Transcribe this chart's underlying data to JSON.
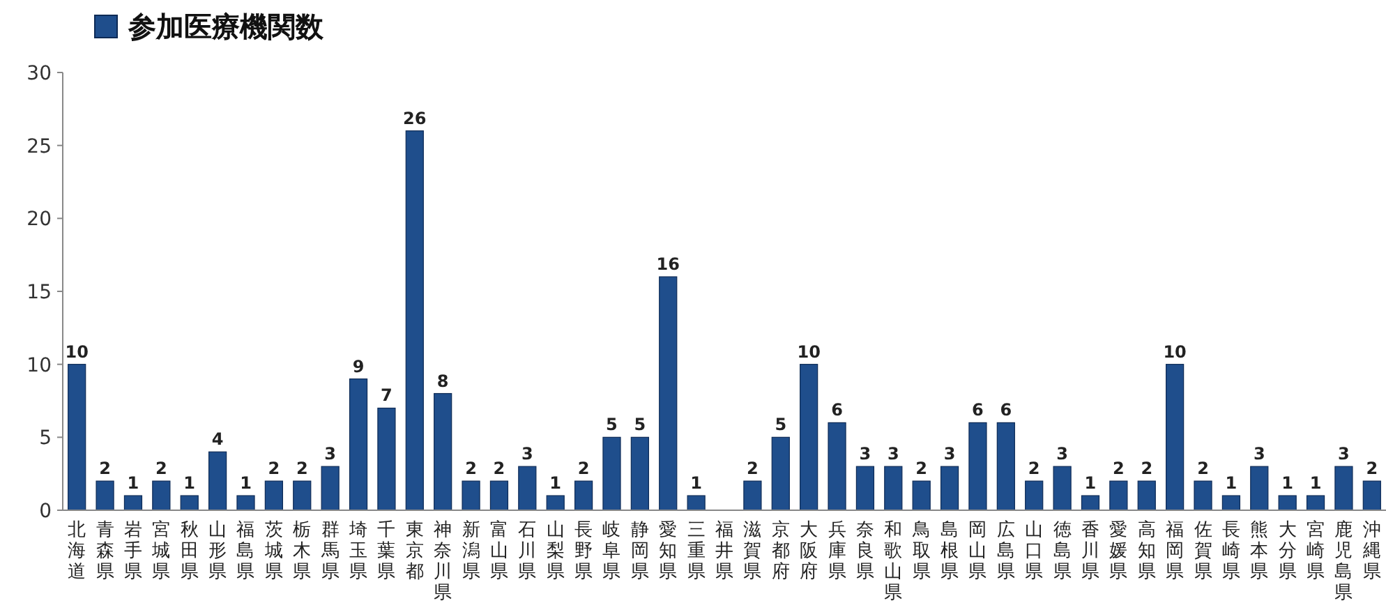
{
  "chart_data": {
    "type": "bar",
    "legend": "top left",
    "grid": false,
    "categories": [
      "北海道",
      "青森県",
      "岩手県",
      "宮城県",
      "秋田県",
      "山形県",
      "福島県",
      "茨城県",
      "栃木県",
      "群馬県",
      "埼玉県",
      "千葉県",
      "東京都",
      "神奈川県",
      "新潟県",
      "富山県",
      "石川県",
      "山梨県",
      "長野県",
      "岐阜県",
      "静岡県",
      "愛知県",
      "三重県",
      "福井県",
      "滋賀県",
      "京都府",
      "大阪府",
      "兵庫県",
      "奈良県",
      "和歌山県",
      "鳥取県",
      "島根県",
      "岡山県",
      "広島県",
      "山口県",
      "徳島県",
      "香川県",
      "愛媛県",
      "高知県",
      "福岡県",
      "佐賀県",
      "長崎県",
      "熊本県",
      "大分県",
      "宮崎県",
      "鹿児島県",
      "沖縄県"
    ],
    "series": [
      {
        "name": "参加医療機関数",
        "color": "#1f4e8c",
        "values": [
          10,
          2,
          1,
          2,
          1,
          4,
          1,
          2,
          2,
          3,
          9,
          7,
          26,
          8,
          2,
          2,
          3,
          1,
          2,
          5,
          5,
          16,
          1,
          0,
          2,
          5,
          10,
          6,
          3,
          3,
          2,
          3,
          6,
          6,
          2,
          3,
          1,
          2,
          2,
          10,
          2,
          1,
          3,
          1,
          1,
          3,
          2
        ],
        "value_labels": [
          "10",
          "2",
          "1",
          "2",
          "1",
          "4",
          "1",
          "2",
          "2",
          "3",
          "9",
          "7",
          "26",
          "8",
          "2",
          "2",
          "3",
          "1",
          "2",
          "5",
          "5",
          "16",
          "1",
          null,
          "2",
          "5",
          "10",
          "6",
          "3",
          "3",
          "2",
          "3",
          "6",
          "6",
          "2",
          "3",
          "1",
          "2",
          "2",
          "10",
          "2",
          "1",
          "3",
          "1",
          "1",
          "3",
          "2"
        ]
      }
    ],
    "ylim": [
      0,
      30
    ],
    "yticks": [
      0,
      5,
      10,
      15,
      20,
      25,
      30
    ]
  }
}
